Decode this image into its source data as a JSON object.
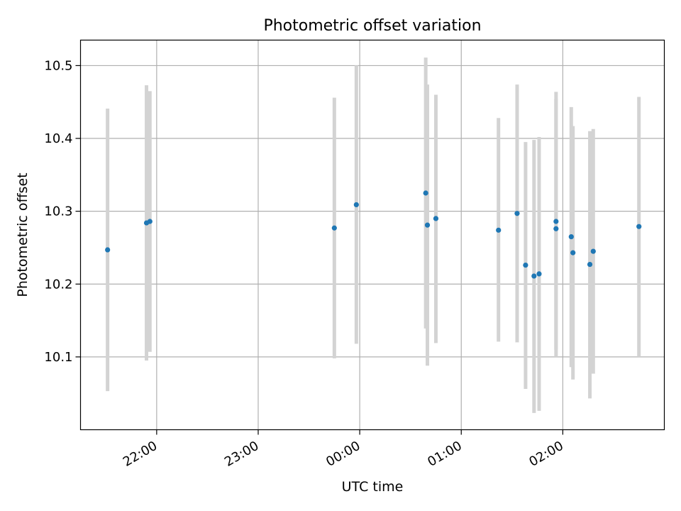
{
  "chart_data": {
    "type": "scatter",
    "title": "Photometric offset variation",
    "xlabel": "UTC time",
    "ylabel": "Photometric offset",
    "x_ticks": [
      "22:00",
      "23:00",
      "00:00",
      "01:00",
      "02:00"
    ],
    "y_ticks": [
      "10.1",
      "10.2",
      "10.3",
      "10.4",
      "10.5"
    ],
    "xlim": [
      "21:15",
      "03:00"
    ],
    "ylim": [
      10.0,
      10.535
    ],
    "grid": true,
    "marker_color": "#1f77b4",
    "errorbar_color": "#d3d3d3",
    "points": [
      {
        "t": "21:31",
        "y": 10.247,
        "lo": 10.053,
        "hi": 10.441
      },
      {
        "t": "21:54",
        "y": 10.284,
        "lo": 10.095,
        "hi": 10.473
      },
      {
        "t": "21:56",
        "y": 10.286,
        "lo": 10.107,
        "hi": 10.465
      },
      {
        "t": "23:45",
        "y": 10.277,
        "lo": 10.098,
        "hi": 10.456
      },
      {
        "t": "23:58",
        "y": 10.309,
        "lo": 10.118,
        "hi": 10.5
      },
      {
        "t": "00:39",
        "y": 10.325,
        "lo": 10.139,
        "hi": 10.511
      },
      {
        "t": "00:40",
        "y": 10.281,
        "lo": 10.088,
        "hi": 10.474
      },
      {
        "t": "00:45",
        "y": 10.29,
        "lo": 10.119,
        "hi": 10.46
      },
      {
        "t": "01:22",
        "y": 10.274,
        "lo": 10.121,
        "hi": 10.428
      },
      {
        "t": "01:33",
        "y": 10.297,
        "lo": 10.12,
        "hi": 10.474
      },
      {
        "t": "01:38",
        "y": 10.226,
        "lo": 10.056,
        "hi": 10.395
      },
      {
        "t": "01:43",
        "y": 10.211,
        "lo": 10.023,
        "hi": 10.398
      },
      {
        "t": "01:46",
        "y": 10.214,
        "lo": 10.026,
        "hi": 10.402
      },
      {
        "t": "01:56",
        "y": 10.286,
        "lo": 10.11,
        "hi": 10.464
      },
      {
        "t": "01:56",
        "y": 10.276,
        "lo": 10.1,
        "hi": 10.454
      },
      {
        "t": "02:05",
        "y": 10.265,
        "lo": 10.086,
        "hi": 10.443
      },
      {
        "t": "02:06",
        "y": 10.243,
        "lo": 10.069,
        "hi": 10.417
      },
      {
        "t": "02:16",
        "y": 10.227,
        "lo": 10.043,
        "hi": 10.41
      },
      {
        "t": "02:18",
        "y": 10.245,
        "lo": 10.077,
        "hi": 10.413
      },
      {
        "t": "02:45",
        "y": 10.279,
        "lo": 10.1,
        "hi": 10.457
      }
    ]
  }
}
